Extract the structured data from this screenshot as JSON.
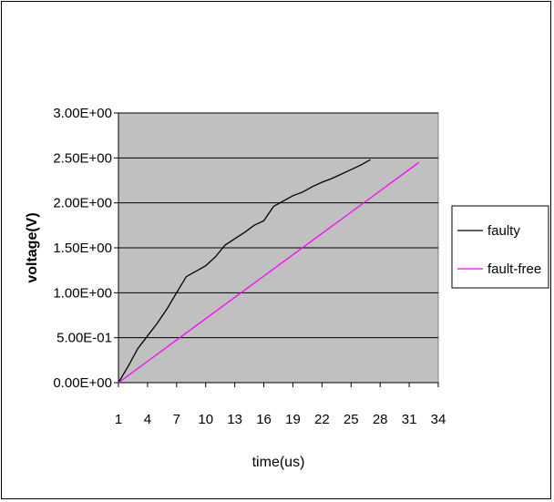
{
  "chart_data": {
    "type": "line",
    "title": "",
    "xlabel": "time(us)",
    "ylabel": "voltage(V)",
    "x_ticks": [
      "1",
      "4",
      "7",
      "10",
      "13",
      "16",
      "19",
      "22",
      "25",
      "28",
      "31",
      "34"
    ],
    "y_ticks": [
      "0.00E+00",
      "5.00E-01",
      "1.00E+00",
      "1.50E+00",
      "2.00E+00",
      "2.50E+00",
      "3.00E+00"
    ],
    "xlim": [
      1,
      34
    ],
    "ylim": [
      0,
      3
    ],
    "grid": true,
    "legend_position": "right",
    "plot_background": "#c0c0c0",
    "series": [
      {
        "name": "faulty",
        "color": "#000000",
        "x": [
          1,
          2,
          3,
          4,
          5,
          6,
          7,
          8,
          9,
          10,
          11,
          12,
          13,
          14,
          15,
          16,
          17,
          18,
          19,
          20,
          21,
          22,
          23,
          24,
          25,
          26,
          27
        ],
        "y": [
          0.0,
          0.18,
          0.38,
          0.52,
          0.66,
          0.82,
          1.0,
          1.18,
          1.24,
          1.3,
          1.4,
          1.53,
          1.6,
          1.67,
          1.75,
          1.8,
          1.96,
          2.02,
          2.08,
          2.12,
          2.18,
          2.23,
          2.27,
          2.32,
          2.37,
          2.42,
          2.48
        ]
      },
      {
        "name": "fault-free",
        "color": "#ff00ff",
        "x": [
          1,
          32
        ],
        "y": [
          0.0,
          2.45
        ]
      }
    ]
  }
}
